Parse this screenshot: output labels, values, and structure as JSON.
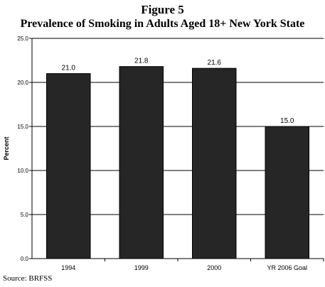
{
  "figure": {
    "label": "Figure 5",
    "title": "Prevalence of Smoking in Adults Aged 18+ New York State"
  },
  "chart_data": {
    "type": "bar",
    "categories": [
      "1994",
      "1999",
      "2000",
      "YR 2006 Goal"
    ],
    "values": [
      21.0,
      21.8,
      21.6,
      15.0
    ],
    "data_labels": [
      "21.0",
      "21.8",
      "21.6",
      "15.0"
    ],
    "ylabel": "Percent",
    "ylim": [
      0,
      25
    ],
    "yticks": [
      0,
      5,
      10,
      15,
      20,
      25
    ],
    "ytick_labels": [
      "0.0",
      "5.0",
      "10.0",
      "15.0",
      "20.0",
      "25.0"
    ],
    "grid": true,
    "legend": "none",
    "bar_color": "#262626"
  },
  "source": "Source:  BRFSS"
}
